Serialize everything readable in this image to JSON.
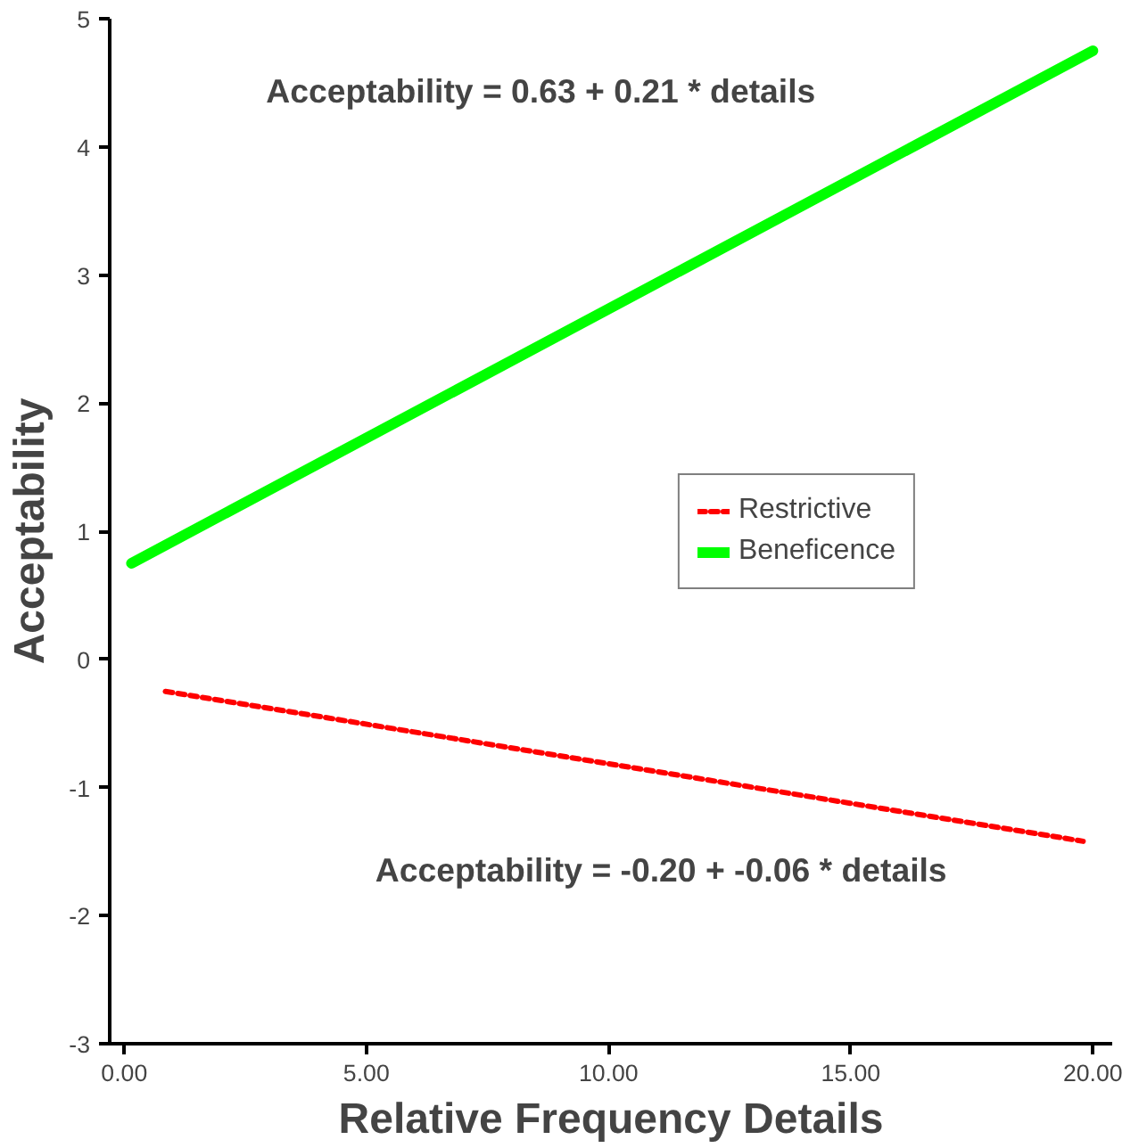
{
  "chart_data": {
    "type": "line",
    "xlabel": "Relative Frequency Details",
    "ylabel": "Acceptability",
    "xlim": [
      -0.3,
      20.4
    ],
    "ylim": [
      -3,
      5
    ],
    "xticks": [
      {
        "value": 0,
        "label": "0.00"
      },
      {
        "value": 5,
        "label": "5.00"
      },
      {
        "value": 10,
        "label": "10.00"
      },
      {
        "value": 15,
        "label": "15.00"
      },
      {
        "value": 20,
        "label": "20.00"
      }
    ],
    "yticks": [
      -3,
      -2,
      -1,
      0,
      1,
      2,
      3,
      4,
      5
    ],
    "series": [
      {
        "name": "Restrictive",
        "color": "#ff0000",
        "x": [
          0.85,
          19.8
        ],
        "values": [
          -0.25,
          -1.42
        ],
        "line_style": "dashed"
      },
      {
        "name": "Beneficence",
        "color": "#00ff00",
        "x": [
          0.15,
          20.0
        ],
        "values": [
          0.75,
          4.75
        ],
        "line_style": "solid"
      }
    ],
    "annotations": [
      "Acceptability = 0.63 + 0.21 * details",
      "Acceptability = -0.20 + -0.06 * details"
    ],
    "legend": "right",
    "grid": false
  }
}
